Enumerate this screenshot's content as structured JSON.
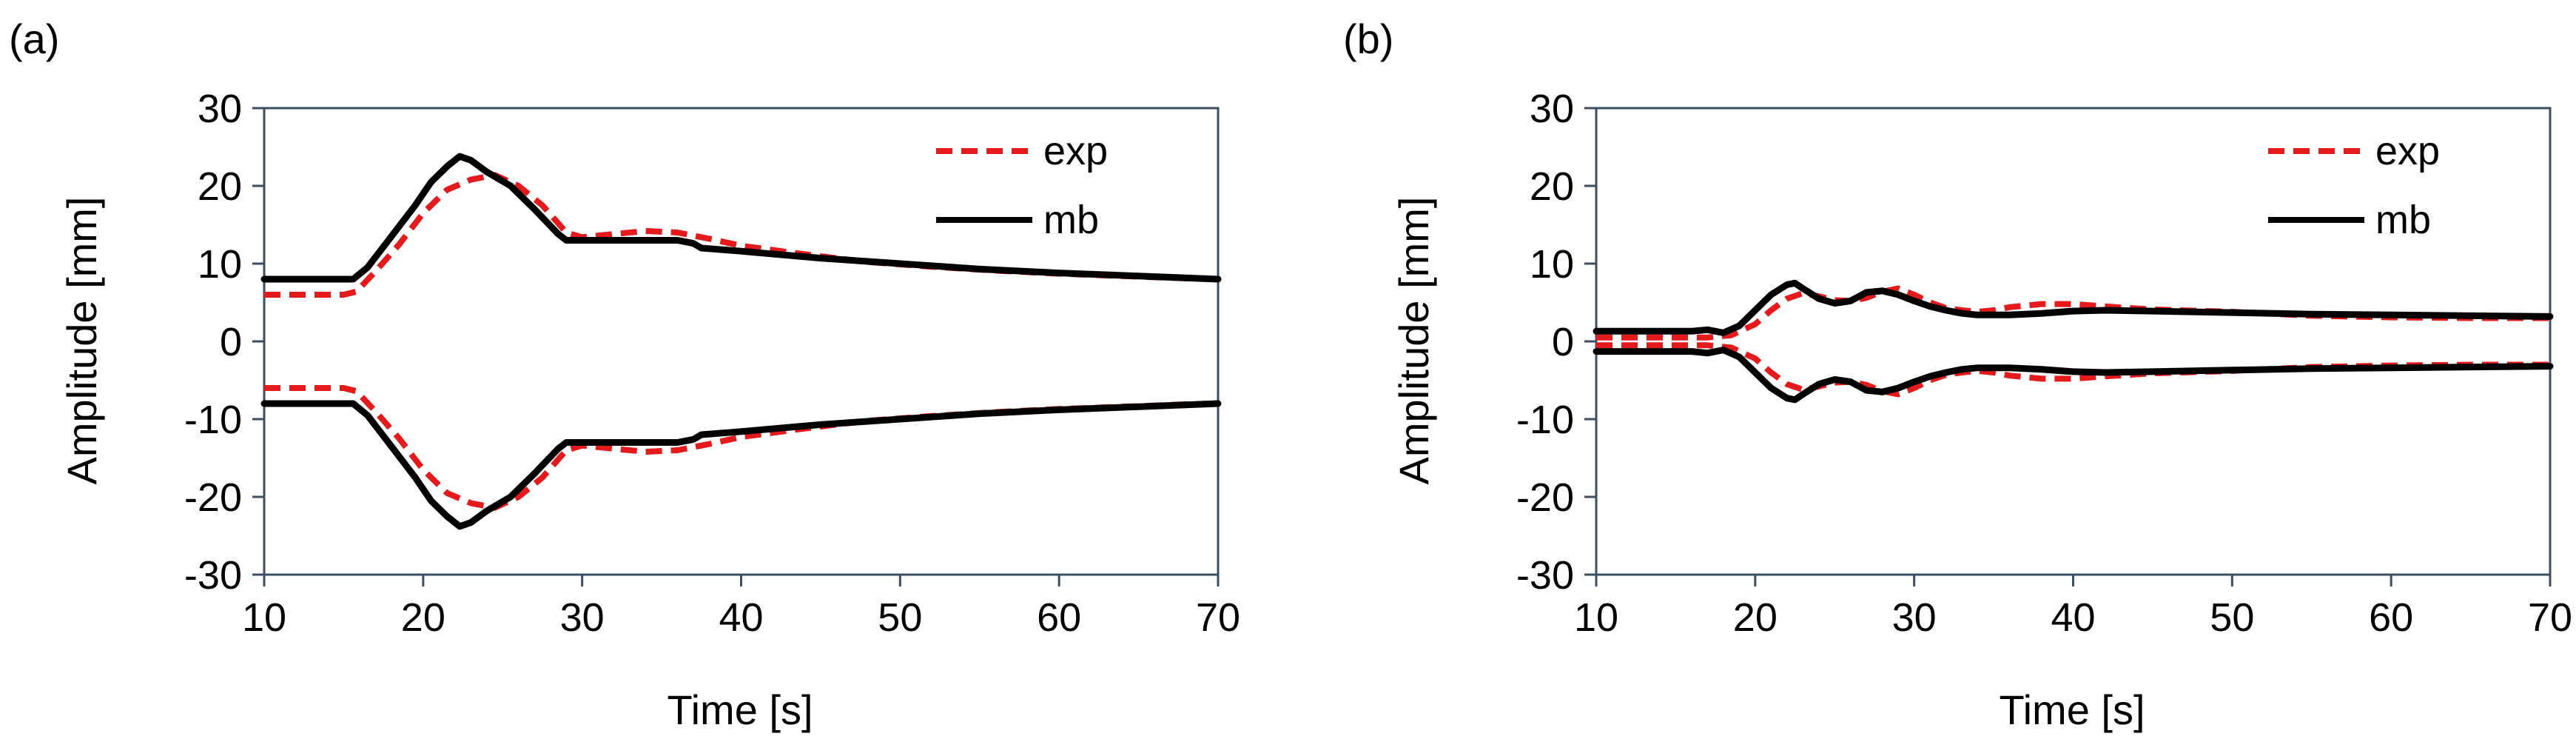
{
  "chart_data": [
    {
      "panel_label": "(a)",
      "type": "line",
      "xlabel": "Time [s]",
      "ylabel": "Amplitude [mm]",
      "xlim": [
        10,
        70
      ],
      "ylim": [
        -30,
        30
      ],
      "xticks": [
        10,
        20,
        30,
        40,
        50,
        60,
        70
      ],
      "yticks": [
        -30,
        -20,
        -10,
        0,
        10,
        20,
        30
      ],
      "legend_position": "top-right",
      "series": [
        {
          "name": "exp",
          "style": "dashed",
          "color": "#e41a1c",
          "upper": [
            [
              10,
              6
            ],
            [
              15,
              6
            ],
            [
              15.8,
              6.4
            ],
            [
              17,
              9
            ],
            [
              18.5,
              12.5
            ],
            [
              20,
              16.5
            ],
            [
              21.5,
              19.5
            ],
            [
              23,
              20.8
            ],
            [
              24.5,
              21.4
            ],
            [
              26,
              20
            ],
            [
              27.5,
              17.5
            ],
            [
              29,
              14
            ],
            [
              30,
              13.4
            ],
            [
              32,
              13.8
            ],
            [
              34,
              14.2
            ],
            [
              36,
              14
            ],
            [
              38,
              13.2
            ],
            [
              40,
              12.3
            ],
            [
              44,
              11.2
            ],
            [
              48,
              10.2
            ],
            [
              52,
              9.6
            ],
            [
              56,
              9.1
            ],
            [
              60,
              8.7
            ],
            [
              64,
              8.4
            ],
            [
              68,
              8.1
            ],
            [
              70,
              8
            ]
          ],
          "lower": [
            [
              10,
              -6
            ],
            [
              15,
              -6
            ],
            [
              15.8,
              -6.4
            ],
            [
              17,
              -9
            ],
            [
              18.5,
              -12.5
            ],
            [
              20,
              -16.5
            ],
            [
              21.5,
              -19.5
            ],
            [
              23,
              -20.8
            ],
            [
              24.5,
              -21.4
            ],
            [
              26,
              -20
            ],
            [
              27.5,
              -17.5
            ],
            [
              29,
              -14
            ],
            [
              30,
              -13.4
            ],
            [
              32,
              -13.8
            ],
            [
              34,
              -14.2
            ],
            [
              36,
              -14
            ],
            [
              38,
              -13.2
            ],
            [
              40,
              -12.3
            ],
            [
              44,
              -11.2
            ],
            [
              48,
              -10.2
            ],
            [
              52,
              -9.6
            ],
            [
              56,
              -9.1
            ],
            [
              60,
              -8.7
            ],
            [
              64,
              -8.4
            ],
            [
              68,
              -8.1
            ],
            [
              70,
              -8
            ]
          ]
        },
        {
          "name": "mb",
          "style": "solid",
          "color": "#000000",
          "upper": [
            [
              10,
              8
            ],
            [
              15.6,
              8
            ],
            [
              16.5,
              9.5
            ],
            [
              18,
              13.5
            ],
            [
              19.5,
              17.5
            ],
            [
              20.5,
              20.5
            ],
            [
              21.5,
              22.5
            ],
            [
              22.3,
              23.8
            ],
            [
              23,
              23.3
            ],
            [
              24,
              21.8
            ],
            [
              25.5,
              20
            ],
            [
              27,
              17
            ],
            [
              28.5,
              13.8
            ],
            [
              29,
              13
            ],
            [
              32,
              13
            ],
            [
              36,
              13
            ],
            [
              37,
              12.6
            ],
            [
              37.5,
              12
            ],
            [
              40,
              11.6
            ],
            [
              45,
              10.7
            ],
            [
              50,
              10
            ],
            [
              55,
              9.3
            ],
            [
              60,
              8.8
            ],
            [
              65,
              8.4
            ],
            [
              70,
              8
            ]
          ],
          "lower": [
            [
              10,
              -8
            ],
            [
              15.6,
              -8
            ],
            [
              16.5,
              -9.5
            ],
            [
              18,
              -13.5
            ],
            [
              19.5,
              -17.5
            ],
            [
              20.5,
              -20.5
            ],
            [
              21.5,
              -22.5
            ],
            [
              22.3,
              -23.8
            ],
            [
              23,
              -23.3
            ],
            [
              24,
              -21.8
            ],
            [
              25.5,
              -20
            ],
            [
              27,
              -17
            ],
            [
              28.5,
              -13.8
            ],
            [
              29,
              -13
            ],
            [
              32,
              -13
            ],
            [
              36,
              -13
            ],
            [
              37,
              -12.6
            ],
            [
              37.5,
              -12
            ],
            [
              40,
              -11.6
            ],
            [
              45,
              -10.7
            ],
            [
              50,
              -10
            ],
            [
              55,
              -9.3
            ],
            [
              60,
              -8.8
            ],
            [
              65,
              -8.4
            ],
            [
              70,
              -8
            ]
          ]
        }
      ]
    },
    {
      "panel_label": "(b)",
      "type": "line",
      "xlabel": "Time [s]",
      "ylabel": "Amplitude [mm]",
      "xlim": [
        10,
        70
      ],
      "ylim": [
        -30,
        30
      ],
      "xticks": [
        10,
        20,
        30,
        40,
        50,
        60,
        70
      ],
      "yticks": [
        -30,
        -20,
        -10,
        0,
        10,
        20,
        30
      ],
      "legend_position": "top-right",
      "series": [
        {
          "name": "exp",
          "style": "dashed",
          "color": "#e41a1c",
          "upper": [
            [
              10,
              0.5
            ],
            [
              17,
              0.5
            ],
            [
              18.5,
              0.8
            ],
            [
              20,
              2.2
            ],
            [
              21,
              4
            ],
            [
              22,
              5.5
            ],
            [
              23,
              6.2
            ],
            [
              24,
              5.8
            ],
            [
              25,
              5.3
            ],
            [
              26,
              5.2
            ],
            [
              27,
              5.6
            ],
            [
              28,
              6.4
            ],
            [
              29,
              6.8
            ],
            [
              30,
              6
            ],
            [
              31,
              5
            ],
            [
              32,
              4.3
            ],
            [
              33,
              4
            ],
            [
              34,
              3.8
            ],
            [
              35,
              4
            ],
            [
              36,
              4.4
            ],
            [
              38,
              4.8
            ],
            [
              40,
              4.8
            ],
            [
              42,
              4.5
            ],
            [
              45,
              4.1
            ],
            [
              50,
              3.8
            ],
            [
              55,
              3.3
            ],
            [
              60,
              3.1
            ],
            [
              65,
              3
            ],
            [
              70,
              3
            ]
          ],
          "lower": [
            [
              10,
              -0.5
            ],
            [
              17,
              -0.5
            ],
            [
              18.5,
              -0.8
            ],
            [
              20,
              -2.2
            ],
            [
              21,
              -4
            ],
            [
              22,
              -5.5
            ],
            [
              23,
              -6.2
            ],
            [
              24,
              -5.8
            ],
            [
              25,
              -5.3
            ],
            [
              26,
              -5.2
            ],
            [
              27,
              -5.6
            ],
            [
              28,
              -6.4
            ],
            [
              29,
              -6.8
            ],
            [
              30,
              -6
            ],
            [
              31,
              -5
            ],
            [
              32,
              -4.3
            ],
            [
              33,
              -4
            ],
            [
              34,
              -3.8
            ],
            [
              35,
              -4
            ],
            [
              36,
              -4.4
            ],
            [
              38,
              -4.8
            ],
            [
              40,
              -4.8
            ],
            [
              42,
              -4.5
            ],
            [
              45,
              -4.1
            ],
            [
              50,
              -3.8
            ],
            [
              55,
              -3.3
            ],
            [
              60,
              -3.1
            ],
            [
              65,
              -3
            ],
            [
              70,
              -3
            ]
          ]
        },
        {
          "name": "mb",
          "style": "solid",
          "color": "#000000",
          "upper": [
            [
              10,
              1.3
            ],
            [
              16,
              1.3
            ],
            [
              17,
              1.5
            ],
            [
              18,
              1.1
            ],
            [
              19,
              2
            ],
            [
              20,
              4
            ],
            [
              21,
              6
            ],
            [
              22,
              7.3
            ],
            [
              22.5,
              7.5
            ],
            [
              23,
              6.8
            ],
            [
              24,
              5.5
            ],
            [
              25,
              4.9
            ],
            [
              26,
              5.2
            ],
            [
              27,
              6.3
            ],
            [
              28,
              6.5
            ],
            [
              29,
              6
            ],
            [
              30,
              5.2
            ],
            [
              31,
              4.5
            ],
            [
              32,
              4
            ],
            [
              33,
              3.6
            ],
            [
              34,
              3.4
            ],
            [
              36,
              3.4
            ],
            [
              38,
              3.6
            ],
            [
              40,
              3.9
            ],
            [
              42,
              4
            ],
            [
              45,
              3.9
            ],
            [
              50,
              3.7
            ],
            [
              55,
              3.5
            ],
            [
              60,
              3.4
            ],
            [
              65,
              3.3
            ],
            [
              70,
              3.2
            ]
          ],
          "lower": [
            [
              10,
              -1.3
            ],
            [
              16,
              -1.3
            ],
            [
              17,
              -1.5
            ],
            [
              18,
              -1.1
            ],
            [
              19,
              -2
            ],
            [
              20,
              -4
            ],
            [
              21,
              -6
            ],
            [
              22,
              -7.3
            ],
            [
              22.5,
              -7.5
            ],
            [
              23,
              -6.8
            ],
            [
              24,
              -5.5
            ],
            [
              25,
              -4.9
            ],
            [
              26,
              -5.2
            ],
            [
              27,
              -6.3
            ],
            [
              28,
              -6.5
            ],
            [
              29,
              -6
            ],
            [
              30,
              -5.2
            ],
            [
              31,
              -4.5
            ],
            [
              32,
              -4
            ],
            [
              33,
              -3.6
            ],
            [
              34,
              -3.4
            ],
            [
              36,
              -3.4
            ],
            [
              38,
              -3.6
            ],
            [
              40,
              -3.9
            ],
            [
              42,
              -4
            ],
            [
              45,
              -3.9
            ],
            [
              50,
              -3.7
            ],
            [
              55,
              -3.5
            ],
            [
              60,
              -3.4
            ],
            [
              65,
              -3.3
            ],
            [
              70,
              -3.2
            ]
          ]
        }
      ]
    }
  ]
}
